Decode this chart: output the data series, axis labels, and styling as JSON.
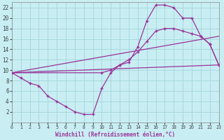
{
  "background_color": "#c8eef3",
  "grid_color": "#a8d8dc",
  "line_color": "#993399",
  "xlabel": "Windchill (Refroidissement éolien,°C)",
  "xlim": [
    0,
    23
  ],
  "ylim": [
    0,
    23
  ],
  "yticks": [
    2,
    4,
    6,
    8,
    10,
    12,
    14,
    16,
    18,
    20,
    22
  ],
  "xticks": [
    0,
    1,
    2,
    3,
    4,
    5,
    6,
    7,
    8,
    9,
    10,
    11,
    12,
    13,
    14,
    15,
    16,
    17,
    18,
    19,
    20,
    21,
    22,
    23
  ],
  "line1_x": [
    0,
    1,
    2,
    3,
    4,
    5,
    6,
    7,
    8,
    9,
    10,
    11,
    12,
    13,
    14,
    15,
    16,
    17,
    18,
    19,
    20,
    21,
    22,
    23
  ],
  "line1_y": [
    9.5,
    8.5,
    7.5,
    7.0,
    5.0,
    4.0,
    3.0,
    2.0,
    1.5,
    1.5,
    6.5,
    9.5,
    11.0,
    11.5,
    14.5,
    19.5,
    22.5,
    22.5,
    22.0,
    20.0,
    20.0,
    16.5,
    15.0,
    11.0
  ],
  "line2_x": [
    0,
    10,
    11,
    12,
    13,
    14,
    15,
    16,
    17,
    18,
    19,
    20,
    21,
    22,
    23
  ],
  "line2_y": [
    9.5,
    9.5,
    10.0,
    11.0,
    12.0,
    13.5,
    15.5,
    17.5,
    18.0,
    18.0,
    17.5,
    17.0,
    16.5,
    15.0,
    11.0
  ],
  "line3_x": [
    0,
    23
  ],
  "line3_y": [
    9.5,
    11.0
  ],
  "line4_x": [
    0,
    23
  ],
  "line4_y": [
    9.5,
    16.5
  ]
}
